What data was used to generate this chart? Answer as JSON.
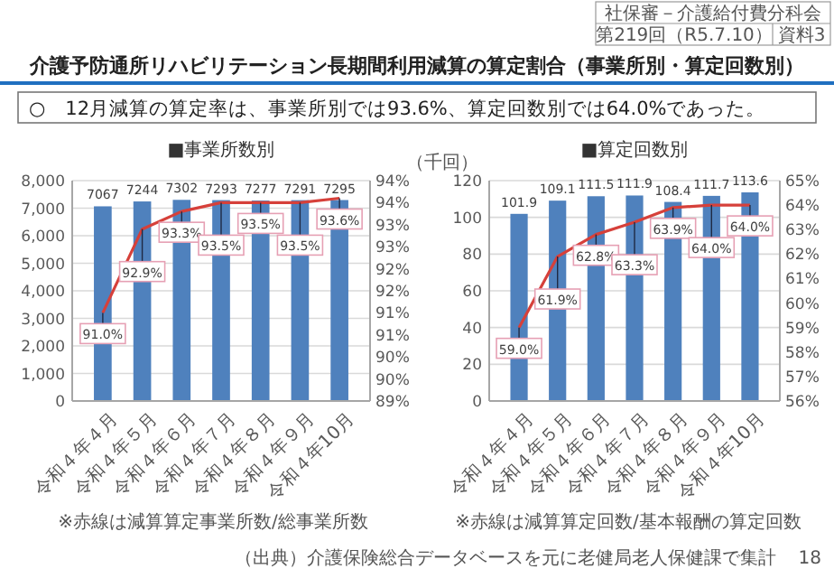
{
  "chart_data": [
    {
      "type": "bar",
      "title": "■事業所数別",
      "categories": [
        "令和４年４月",
        "令和４年５月",
        "令和４年６月",
        "令和４年７月",
        "令和４年８月",
        "令和４年９月",
        "令和４年10月"
      ],
      "series": [
        {
          "color": "#4f81bd",
          "values": [
            7067,
            7244,
            7302,
            7293,
            7277,
            7291,
            7295
          ],
          "value_labels": [
            "7067",
            "7244",
            "7302",
            "7293",
            "7277",
            "7291",
            "7295"
          ]
        },
        {
          "type": "line",
          "axis": "y2",
          "color": "#d6403a",
          "values": [
            91.0,
            92.9,
            93.3,
            93.5,
            93.5,
            93.5,
            93.6
          ],
          "value_labels": [
            "91.0%",
            "92.9%",
            "93.3%",
            "93.5%",
            "93.5%",
            "93.5%",
            "93.6%"
          ]
        }
      ],
      "ylim": [
        0,
        8000
      ],
      "yticks": [
        0,
        {
          "value": 1000,
          "label": "1,000"
        },
        {
          "value": 2000,
          "label": "2,000"
        },
        {
          "value": 3000,
          "label": "3,000"
        },
        {
          "value": 4000,
          "label": "4,000"
        },
        {
          "value": 5000,
          "label": "5,000"
        },
        {
          "value": 6000,
          "label": "6,000"
        },
        {
          "value": 7000,
          "label": "7,000"
        },
        {
          "value": 8000,
          "label": "8,000"
        }
      ],
      "y2lim": [
        89,
        94
      ],
      "y2ticks": [
        {
          "value": 89,
          "label": "89%"
        },
        {
          "value": 89.5,
          "label": "90%"
        },
        {
          "value": 90,
          "label": "90%"
        },
        {
          "value": 90.5,
          "label": "91%"
        },
        {
          "value": 91,
          "label": "91%"
        },
        {
          "value": 91.5,
          "label": "92%"
        },
        {
          "value": 92,
          "label": "92%"
        },
        {
          "value": 92.5,
          "label": "93%"
        },
        {
          "value": 93,
          "label": "93%"
        },
        {
          "value": 93.5,
          "label": "94%"
        },
        {
          "value": 94,
          "label": "94%"
        }
      ],
      "grid": "y",
      "marker": "none",
      "annotations": [
        "介護予防通所リハビリテーション長期間利用減算の算定割合（事業所別・算定回数別）",
        "○　12月減算の算定率は、事業所別では93.6%、算定回数別では64.0%であった。",
        "社保審－介護給付費分科会",
        "第219回（R5.7.10）",
        "資料3",
        "※赤線は減算算定事業所数/総事業所数"
      ]
    },
    {
      "type": "bar",
      "title": "■算定回数別",
      "ylabel": "（千回）",
      "categories": [
        "令和４年４月",
        "令和４年５月",
        "令和４年６月",
        "令和４年７月",
        "令和４年８月",
        "令和４年９月",
        "令和４年10月"
      ],
      "series": [
        {
          "color": "#4f81bd",
          "values": [
            101.9,
            109.1,
            111.5,
            111.9,
            108.4,
            111.7,
            113.6
          ],
          "value_labels": [
            "101.9",
            "109.1",
            "111.5",
            "111.9",
            "108.4",
            "111.7",
            "113.6"
          ]
        },
        {
          "type": "line",
          "axis": "y2",
          "color": "#d6403a",
          "values": [
            59.0,
            61.9,
            62.8,
            63.3,
            63.9,
            64.0,
            64.0
          ],
          "value_labels": [
            "59.0%",
            "61.9%",
            "62.8%",
            "63.3%",
            "63.9%",
            "64.0%",
            "64.0%"
          ]
        }
      ],
      "ylim": [
        0,
        120
      ],
      "yticks": [
        0,
        20,
        40,
        60,
        80,
        100,
        120
      ],
      "y2lim": [
        56,
        65
      ],
      "y2ticks": [
        {
          "value": 56,
          "label": "56%"
        },
        {
          "value": 57,
          "label": "57%"
        },
        {
          "value": 58,
          "label": "58%"
        },
        {
          "value": 59,
          "label": "59%"
        },
        {
          "value": 60,
          "label": "60%"
        },
        {
          "value": 61,
          "label": "61%"
        },
        {
          "value": 62,
          "label": "62%"
        },
        {
          "value": 63,
          "label": "63%"
        },
        {
          "value": 64,
          "label": "64%"
        },
        {
          "value": 65,
          "label": "65%"
        }
      ],
      "grid": "y",
      "marker": "none",
      "annotations": [
        "※赤線は減算算定回数/基本報酬の算定回数",
        "（出典）介護保険総合データベースを元に老健局老人保健課で集計",
        "18"
      ]
    }
  ]
}
